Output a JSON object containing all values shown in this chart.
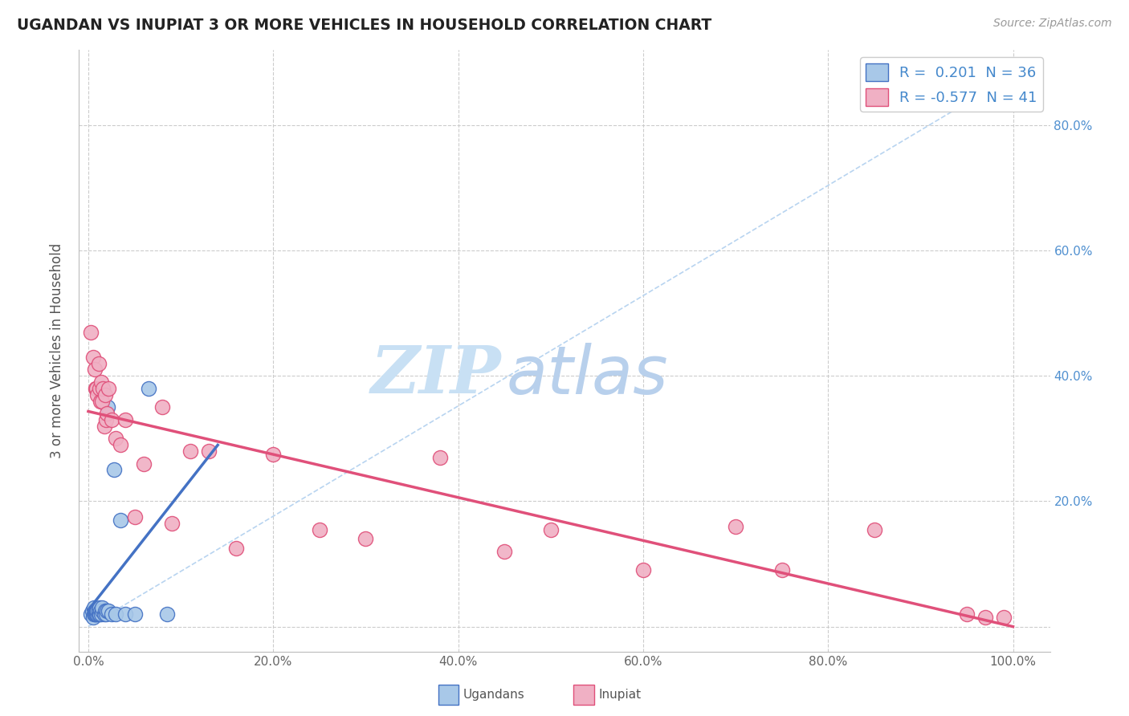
{
  "title": "UGANDAN VS INUPIAT 3 OR MORE VEHICLES IN HOUSEHOLD CORRELATION CHART",
  "source": "Source: ZipAtlas.com",
  "ylabel": "3 or more Vehicles in Household",
  "xlabel_ugandans": "Ugandans",
  "xlabel_inupiat": "Inupiat",
  "r_ugandan": 0.201,
  "n_ugandan": 36,
  "r_inupiat": -0.577,
  "n_inupiat": 41,
  "xlim": [
    -0.01,
    1.04
  ],
  "ylim": [
    -0.04,
    0.92
  ],
  "xticks": [
    0.0,
    0.2,
    0.4,
    0.6,
    0.8,
    1.0
  ],
  "yticks": [
    0.0,
    0.2,
    0.4,
    0.6,
    0.8
  ],
  "xtick_labels": [
    "0.0%",
    "20.0%",
    "40.0%",
    "60.0%",
    "80.0%",
    "100.0%"
  ],
  "ytick_labels_right": [
    "",
    "20.0%",
    "40.0%",
    "60.0%",
    "80.0%"
  ],
  "color_ugandan": "#a8c8e8",
  "color_inupiat": "#f0b0c4",
  "line_color_ugandan": "#4472c4",
  "line_color_inupiat": "#e0507a",
  "trendline_color": "#b8d4f0",
  "watermark_zip_color": "#c8e0f4",
  "watermark_atlas_color": "#b8d0ec",
  "background_color": "#ffffff",
  "grid_color": "#cccccc",
  "ugandan_x": [
    0.003,
    0.004,
    0.005,
    0.006,
    0.006,
    0.007,
    0.007,
    0.008,
    0.008,
    0.009,
    0.009,
    0.01,
    0.01,
    0.011,
    0.011,
    0.012,
    0.012,
    0.013,
    0.014,
    0.015,
    0.015,
    0.016,
    0.017,
    0.018,
    0.019,
    0.02,
    0.021,
    0.022,
    0.025,
    0.028,
    0.03,
    0.035,
    0.04,
    0.05,
    0.065,
    0.085
  ],
  "ugandan_y": [
    0.02,
    0.025,
    0.015,
    0.02,
    0.03,
    0.02,
    0.025,
    0.02,
    0.025,
    0.02,
    0.025,
    0.02,
    0.025,
    0.02,
    0.025,
    0.02,
    0.03,
    0.025,
    0.02,
    0.025,
    0.03,
    0.38,
    0.02,
    0.025,
    0.02,
    0.025,
    0.35,
    0.025,
    0.02,
    0.25,
    0.02,
    0.17,
    0.02,
    0.02,
    0.38,
    0.02
  ],
  "inupiat_x": [
    0.003,
    0.005,
    0.007,
    0.008,
    0.009,
    0.01,
    0.011,
    0.012,
    0.013,
    0.014,
    0.015,
    0.016,
    0.017,
    0.018,
    0.019,
    0.02,
    0.022,
    0.025,
    0.03,
    0.035,
    0.04,
    0.05,
    0.06,
    0.08,
    0.09,
    0.11,
    0.13,
    0.16,
    0.2,
    0.25,
    0.3,
    0.38,
    0.45,
    0.5,
    0.6,
    0.7,
    0.75,
    0.85,
    0.95,
    0.97,
    0.99
  ],
  "inupiat_y": [
    0.47,
    0.43,
    0.41,
    0.38,
    0.38,
    0.37,
    0.42,
    0.38,
    0.36,
    0.39,
    0.36,
    0.38,
    0.32,
    0.37,
    0.33,
    0.34,
    0.38,
    0.33,
    0.3,
    0.29,
    0.33,
    0.175,
    0.26,
    0.35,
    0.165,
    0.28,
    0.28,
    0.125,
    0.275,
    0.155,
    0.14,
    0.27,
    0.12,
    0.155,
    0.09,
    0.16,
    0.09,
    0.155,
    0.02,
    0.015,
    0.015
  ]
}
